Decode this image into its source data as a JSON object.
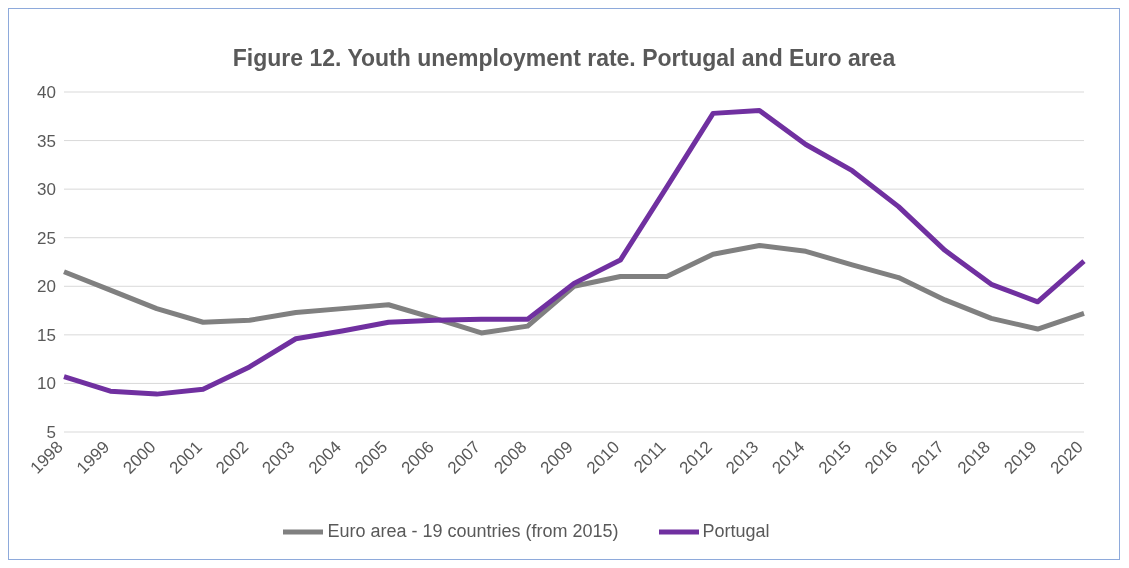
{
  "chart_data": {
    "type": "line",
    "title": "Figure 12. Youth unemployment rate. Portugal and Euro area",
    "categories": [
      "1998",
      "1999",
      "2000",
      "2001",
      "2002",
      "2003",
      "2004",
      "2005",
      "2006",
      "2007",
      "2008",
      "2009",
      "2010",
      "2011",
      "2012",
      "2013",
      "2014",
      "2015",
      "2016",
      "2017",
      "2018",
      "2019",
      "2020"
    ],
    "series": [
      {
        "name": "Euro area - 19 countries  (from 2015)",
        "color": "#808080",
        "values": [
          21.5,
          19.6,
          17.7,
          16.3,
          16.5,
          17.3,
          17.7,
          18.1,
          16.7,
          15.2,
          15.9,
          20.0,
          21.0,
          21.0,
          23.3,
          24.2,
          23.6,
          22.2,
          20.9,
          18.6,
          16.7,
          15.6,
          17.2
        ]
      },
      {
        "name": "Portugal",
        "color": "#7030a0",
        "values": [
          10.7,
          9.2,
          8.9,
          9.4,
          11.7,
          14.6,
          15.4,
          16.3,
          16.5,
          16.6,
          16.6,
          20.3,
          22.7,
          30.2,
          37.8,
          38.1,
          34.6,
          31.9,
          28.2,
          23.7,
          20.2,
          18.4,
          22.6
        ]
      }
    ],
    "ylim": [
      5,
      40
    ],
    "yticks": [
      5,
      10,
      15,
      20,
      25,
      30,
      35,
      40
    ],
    "grid": "y",
    "legend": "bottom",
    "marker": "none",
    "line_style": "solid"
  }
}
